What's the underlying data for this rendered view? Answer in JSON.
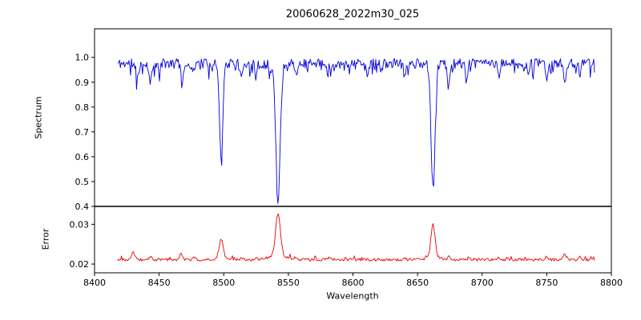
{
  "figure": {
    "background": "#ffffff"
  },
  "chart_data": {
    "type": "line",
    "title": "20060628_2022m30_025",
    "xlabel": "Wavelength",
    "x_range": [
      8400,
      8800
    ],
    "data_x_range": [
      8418,
      8787
    ],
    "x_ticks": [
      8400,
      8450,
      8500,
      8550,
      8600,
      8650,
      8700,
      8750,
      8800
    ],
    "grid": false,
    "legend": "none",
    "panels": [
      {
        "name": "spectrum",
        "ylabel": "Spectrum",
        "color": "#0000dd",
        "ylim": [
          0.4,
          1.115
        ],
        "y_ticks": [
          1.0,
          0.9,
          0.8,
          0.7,
          0.6,
          0.5,
          0.4
        ],
        "y_tick_labels": [
          "1.0",
          "0.9",
          "0.8",
          "0.7",
          "0.6",
          "0.5",
          "0.4"
        ],
        "baseline": 0.975,
        "noise_amplitude": 0.04,
        "dip_chance": 0.1,
        "dip_amplitude": 0.05,
        "n_points": 560,
        "noise_seed": 11,
        "absorption_lines": [
          {
            "center": 8498,
            "depth": 0.37,
            "sigma": 1.3
          },
          {
            "center": 8542,
            "depth": 0.55,
            "sigma": 1.7
          },
          {
            "center": 8662,
            "depth": 0.5,
            "sigma": 1.5
          }
        ],
        "minor_lines": [
          [
            8433,
            0.05,
            0.9
          ],
          [
            8443,
            0.08,
            0.9
          ],
          [
            8450,
            0.04,
            0.8
          ],
          [
            8468,
            0.07,
            0.9
          ],
          [
            8476,
            0.04,
            0.8
          ],
          [
            8514,
            0.05,
            0.9
          ],
          [
            8525,
            0.05,
            0.9
          ],
          [
            8536,
            0.04,
            0.8
          ],
          [
            8556,
            0.04,
            0.8
          ],
          [
            8583,
            0.04,
            0.9
          ],
          [
            8611,
            0.04,
            0.9
          ],
          [
            8622,
            0.03,
            0.8
          ],
          [
            8640,
            0.05,
            0.9
          ],
          [
            8674,
            0.07,
            0.9
          ],
          [
            8688,
            0.06,
            0.9
          ],
          [
            8713,
            0.05,
            0.9
          ],
          [
            8736,
            0.04,
            0.8
          ],
          [
            8750,
            0.06,
            0.9
          ],
          [
            8764,
            0.07,
            0.9
          ],
          [
            8776,
            0.04,
            0.8
          ]
        ]
      },
      {
        "name": "error",
        "ylabel": "Error",
        "color": "#ee0000",
        "ylim": [
          0.0178,
          0.0345
        ],
        "y_ticks": [
          0.03,
          0.02
        ],
        "y_tick_labels": [
          "0.03",
          "0.02"
        ],
        "baseline": 0.0211,
        "noise_amplitude": 0.0007,
        "spike_chance": 0.06,
        "spike_amplitude": 0.001,
        "n_points": 520,
        "noise_seed": 23,
        "peaks": [
          {
            "center": 8498,
            "amp": 0.0047,
            "sigma": 1.5
          },
          {
            "center": 8498,
            "amp": 0.0005,
            "sigma": 4.0
          },
          {
            "center": 8542,
            "amp": 0.0105,
            "sigma": 1.8
          },
          {
            "center": 8542,
            "amp": 0.0012,
            "sigma": 6.0
          },
          {
            "center": 8662,
            "amp": 0.0082,
            "sigma": 1.6
          },
          {
            "center": 8662,
            "amp": 0.0006,
            "sigma": 5.0
          }
        ],
        "minor_peaks": [
          [
            8430,
            0.0018,
            1.2
          ],
          [
            8443,
            0.0008,
            1.0
          ],
          [
            8467,
            0.0014,
            1.2
          ],
          [
            8477,
            0.0006,
            1.0
          ],
          [
            8514,
            0.0005,
            1.0
          ],
          [
            8525,
            0.0006,
            1.0
          ],
          [
            8583,
            0.0004,
            1.0
          ],
          [
            8640,
            0.0005,
            1.0
          ],
          [
            8674,
            0.0007,
            1.0
          ],
          [
            8690,
            0.0006,
            1.0
          ],
          [
            8713,
            0.0005,
            1.0
          ],
          [
            8750,
            0.0007,
            1.0
          ],
          [
            8764,
            0.0012,
            1.2
          ],
          [
            8776,
            0.0006,
            1.0
          ]
        ]
      }
    ]
  }
}
